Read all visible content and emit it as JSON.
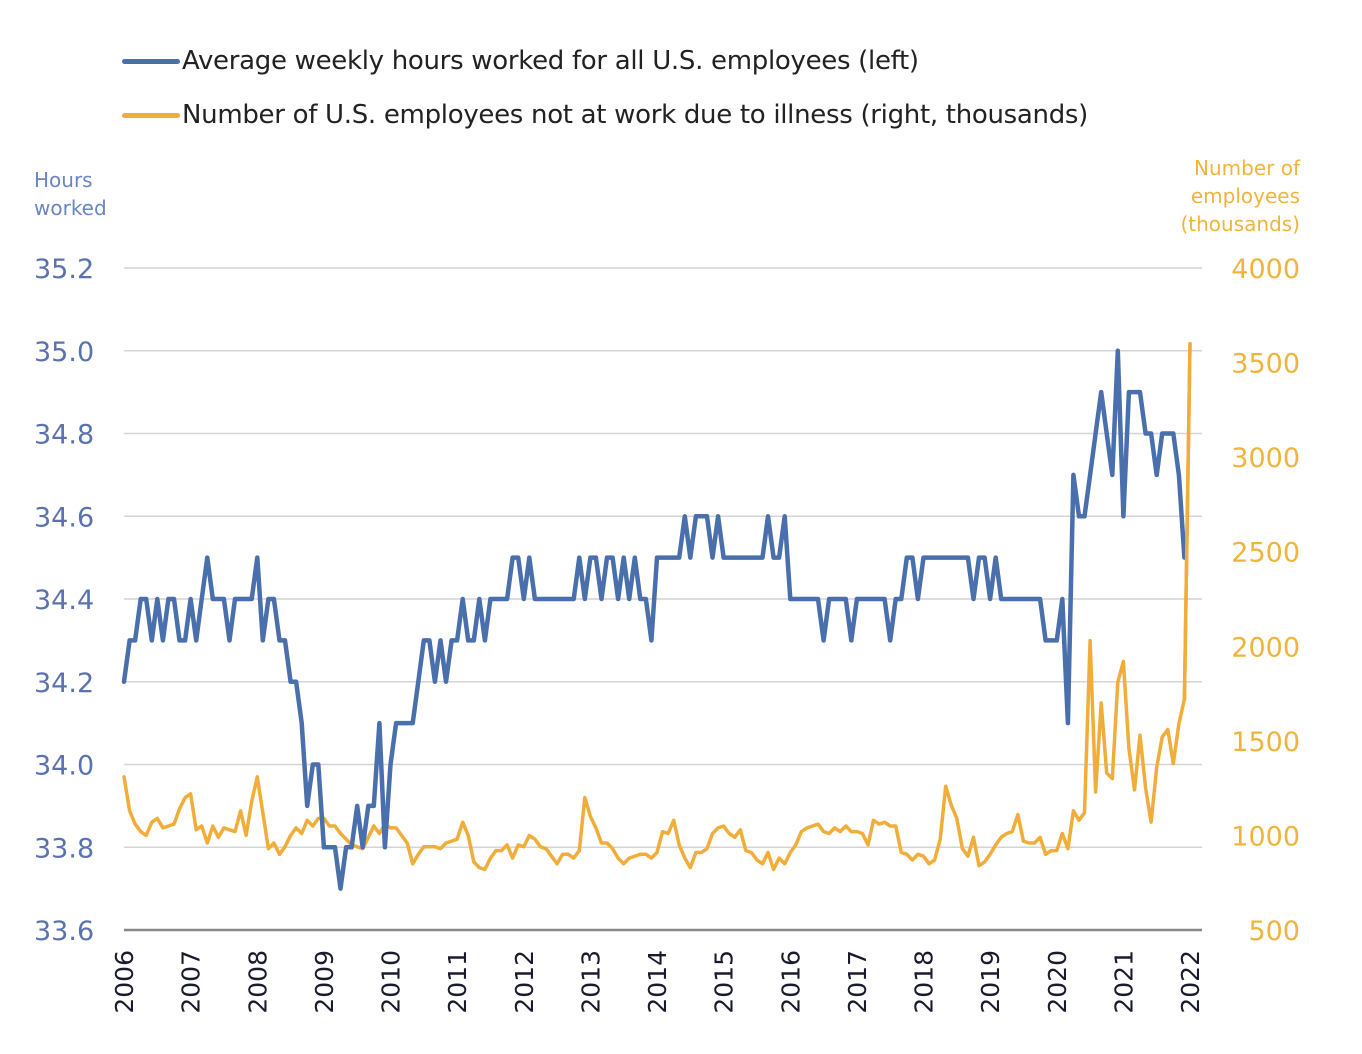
{
  "chart_data": {
    "type": "line",
    "title": "",
    "legend": {
      "placement": "top-left",
      "entries": [
        {
          "label": "Average weekly hours worked for all U.S. employees (left)",
          "color": "#4a6fad"
        },
        {
          "label": "Number of U.S. employees not at work due to illness (right, thousands)",
          "color": "#f0ad3a"
        }
      ]
    },
    "y_left": {
      "label_lines": [
        "Hours",
        "worked"
      ],
      "range": [
        33.6,
        35.2
      ],
      "ticks": [
        "35.2",
        "35.0",
        "34.8",
        "34.6",
        "34.4",
        "34.2",
        "34.0",
        "33.8",
        "33.6"
      ],
      "tick_values": [
        35.2,
        35.0,
        34.8,
        34.6,
        34.4,
        34.2,
        34.0,
        33.8,
        33.6
      ],
      "color": "#5a73b0"
    },
    "y_right": {
      "label_lines": [
        "Number of",
        "employees",
        "(thousands)"
      ],
      "range": [
        500,
        4000
      ],
      "ticks": [
        "4000",
        "3500",
        "3000",
        "2500",
        "2000",
        "1500",
        "1000",
        "500"
      ],
      "tick_values": [
        4000,
        3500,
        3000,
        2500,
        2000,
        1500,
        1000,
        500
      ],
      "color": "#f0b43c"
    },
    "x_axis": {
      "range": [
        2006,
        2022
      ],
      "ticks": [
        "2006",
        "2007",
        "2008",
        "2009",
        "2010",
        "2011",
        "2012",
        "2013",
        "2014",
        "2015",
        "2016",
        "2017",
        "2018",
        "2019",
        "2020",
        "2021",
        "2022"
      ]
    },
    "grid": true,
    "series": [
      {
        "name": "Average weekly hours worked for all U.S. employees (left)",
        "axis": "left",
        "color": "#4a6fad",
        "start": 2006.0,
        "step_months": 1,
        "values": [
          34.2,
          34.3,
          34.3,
          34.4,
          34.4,
          34.3,
          34.4,
          34.3,
          34.4,
          34.4,
          34.3,
          34.3,
          34.4,
          34.3,
          34.4,
          34.5,
          34.4,
          34.4,
          34.4,
          34.3,
          34.4,
          34.4,
          34.4,
          34.4,
          34.5,
          34.3,
          34.4,
          34.4,
          34.3,
          34.3,
          34.2,
          34.2,
          34.1,
          33.9,
          34.0,
          34.0,
          33.8,
          33.8,
          33.8,
          33.7,
          33.8,
          33.8,
          33.9,
          33.8,
          33.9,
          33.9,
          34.1,
          33.8,
          34.0,
          34.1,
          34.1,
          34.1,
          34.1,
          34.2,
          34.3,
          34.3,
          34.2,
          34.3,
          34.2,
          34.3,
          34.3,
          34.4,
          34.3,
          34.3,
          34.4,
          34.3,
          34.4,
          34.4,
          34.4,
          34.4,
          34.5,
          34.5,
          34.4,
          34.5,
          34.4,
          34.4,
          34.4,
          34.4,
          34.4,
          34.4,
          34.4,
          34.4,
          34.5,
          34.4,
          34.5,
          34.5,
          34.4,
          34.5,
          34.5,
          34.4,
          34.5,
          34.4,
          34.5,
          34.4,
          34.4,
          34.3,
          34.5,
          34.5,
          34.5,
          34.5,
          34.5,
          34.6,
          34.5,
          34.6,
          34.6,
          34.6,
          34.5,
          34.6,
          34.5,
          34.5,
          34.5,
          34.5,
          34.5,
          34.5,
          34.5,
          34.5,
          34.6,
          34.5,
          34.5,
          34.6,
          34.4,
          34.4,
          34.4,
          34.4,
          34.4,
          34.4,
          34.3,
          34.4,
          34.4,
          34.4,
          34.4,
          34.3,
          34.4,
          34.4,
          34.4,
          34.4,
          34.4,
          34.4,
          34.3,
          34.4,
          34.4,
          34.5,
          34.5,
          34.4,
          34.5,
          34.5,
          34.5,
          34.5,
          34.5,
          34.5,
          34.5,
          34.5,
          34.5,
          34.4,
          34.5,
          34.5,
          34.4,
          34.5,
          34.4,
          34.4,
          34.4,
          34.4,
          34.4,
          34.4,
          34.4,
          34.4,
          34.3,
          34.3,
          34.3,
          34.4,
          34.1,
          34.7,
          34.6,
          34.6,
          34.7,
          34.8,
          34.9,
          34.8,
          34.7,
          35.0,
          34.6,
          34.9,
          34.9,
          34.9,
          34.8,
          34.8,
          34.7,
          34.8,
          34.8,
          34.8,
          34.7,
          34.5
        ]
      },
      {
        "name": "Number of U.S. employees not at work due to illness (right, thousands)",
        "axis": "right",
        "color": "#f0ad3a",
        "start": 2006.0,
        "step_months": 1,
        "values": [
          1310,
          1130,
          1060,
          1020,
          1000,
          1070,
          1090,
          1040,
          1050,
          1060,
          1140,
          1200,
          1220,
          1030,
          1050,
          960,
          1050,
          990,
          1040,
          1030,
          1020,
          1130,
          1000,
          1180,
          1310,
          1120,
          930,
          960,
          900,
          940,
          1000,
          1040,
          1010,
          1080,
          1050,
          1090,
          1090,
          1050,
          1050,
          1010,
          980,
          950,
          940,
          930,
          990,
          1050,
          1010,
          1060,
          1040,
          1040,
          1000,
          960,
          850,
          900,
          940,
          940,
          940,
          930,
          960,
          970,
          980,
          1070,
          1000,
          860,
          830,
          820,
          880,
          920,
          920,
          950,
          880,
          950,
          940,
          1000,
          980,
          940,
          930,
          890,
          850,
          900,
          900,
          880,
          920,
          1200,
          1100,
          1040,
          960,
          960,
          930,
          880,
          850,
          880,
          890,
          900,
          900,
          880,
          910,
          1020,
          1010,
          1080,
          950,
          880,
          830,
          910,
          910,
          930,
          1010,
          1040,
          1050,
          1010,
          990,
          1030,
          920,
          910,
          870,
          850,
          910,
          820,
          880,
          850,
          910,
          950,
          1020,
          1040,
          1050,
          1060,
          1020,
          1010,
          1040,
          1020,
          1050,
          1020,
          1020,
          1010,
          950,
          1080,
          1060,
          1070,
          1050,
          1050,
          910,
          900,
          870,
          900,
          890,
          850,
          870,
          980,
          1260,
          1160,
          1090,
          930,
          890,
          990,
          840,
          860,
          900,
          950,
          990,
          1010,
          1020,
          1110,
          970,
          960,
          960,
          990,
          900,
          920,
          920,
          1010,
          930,
          1130,
          1080,
          1120,
          2030,
          1230,
          1700,
          1330,
          1300,
          1810,
          1920,
          1460,
          1240,
          1530,
          1250,
          1070,
          1360,
          1520,
          1560,
          1380,
          1590,
          1720,
          3600
        ]
      }
    ]
  }
}
